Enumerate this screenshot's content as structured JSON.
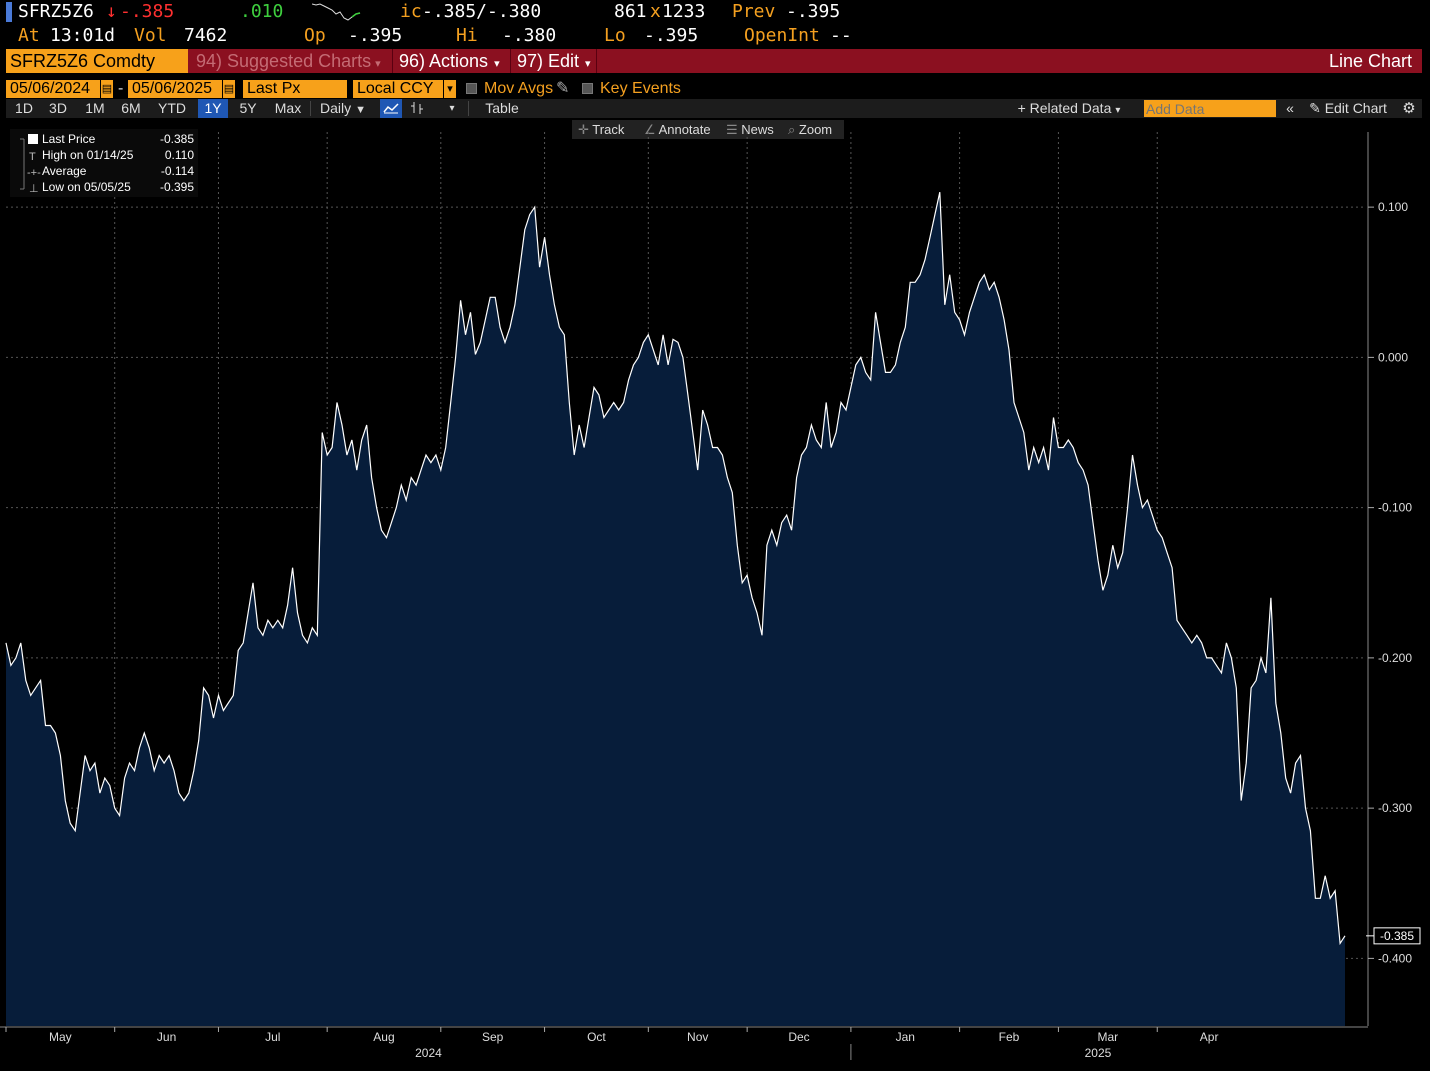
{
  "quote": {
    "ticker": "SFRZ5Z6",
    "arrow": "↓",
    "last": "-.385",
    "change": ".010",
    "ic_label": "ic",
    "bid_ask": "-.385/-.380",
    "size_bid": "861",
    "size_x": "x",
    "size_ask": "1233",
    "prev_label": "Prev",
    "prev_value": "-.395",
    "at_label": "At",
    "at_time": "13:01d",
    "vol_label": "Vol",
    "vol_value": "7462",
    "op_label": "Op",
    "op_value": "-.395",
    "hi_label": "Hi",
    "hi_value": "-.380",
    "lo_label": "Lo",
    "lo_value": "-.395",
    "openint_label": "OpenInt",
    "openint_value": "--"
  },
  "toolbar": {
    "security": "SFRZ5Z6 Comdty",
    "suggested": "94) Suggested Charts",
    "actions": "96) Actions",
    "edit": "97) Edit",
    "chart_type": "Line Chart"
  },
  "controls": {
    "start_date": "05/06/2024",
    "dash": "-",
    "end_date": "05/06/2025",
    "field": "Last Px",
    "currency": "Local CCY",
    "mov_avgs": "Mov Avgs",
    "key_events": "Key Events"
  },
  "ranges": [
    "1D",
    "3D",
    "1M",
    "6M",
    "YTD",
    "1Y",
    "5Y",
    "Max"
  ],
  "selected_range": "1Y",
  "period": "Daily",
  "table_label": "Table",
  "related_data": "+ Related Data",
  "add_data_placeholder": "Add Data",
  "edit_chart": "Edit Chart",
  "tools": [
    "Track",
    "Annotate",
    "News",
    "Zoom"
  ],
  "legend": {
    "rows": [
      {
        "label": "Last Price",
        "value": "-0.385"
      },
      {
        "label": "High on 01/14/25",
        "value": "0.110"
      },
      {
        "label": "Average",
        "value": "-0.114"
      },
      {
        "label": "Low on 05/05/25",
        "value": "-0.395"
      }
    ]
  },
  "colors": {
    "accent_orange": "#f7a11a",
    "bar_red": "#8b1020",
    "line": "#ffffff",
    "fill": "#071d3a",
    "selected_blue": "#1f57b4"
  },
  "chart_data": {
    "type": "area",
    "series": [
      {
        "name": "Last Price",
        "x_start": "2024-05-06",
        "x_end": "2025-05-06",
        "values": [
          -0.19,
          -0.205,
          -0.2,
          -0.19,
          -0.215,
          -0.225,
          -0.22,
          -0.215,
          -0.245,
          -0.245,
          -0.25,
          -0.265,
          -0.295,
          -0.31,
          -0.315,
          -0.29,
          -0.265,
          -0.275,
          -0.27,
          -0.29,
          -0.28,
          -0.285,
          -0.3,
          -0.305,
          -0.28,
          -0.27,
          -0.275,
          -0.26,
          -0.25,
          -0.26,
          -0.275,
          -0.265,
          -0.27,
          -0.265,
          -0.275,
          -0.29,
          -0.295,
          -0.29,
          -0.275,
          -0.255,
          -0.22,
          -0.225,
          -0.24,
          -0.225,
          -0.235,
          -0.23,
          -0.225,
          -0.195,
          -0.19,
          -0.17,
          -0.15,
          -0.18,
          -0.185,
          -0.175,
          -0.18,
          -0.175,
          -0.18,
          -0.165,
          -0.14,
          -0.17,
          -0.185,
          -0.19,
          -0.18,
          -0.185,
          -0.05,
          -0.065,
          -0.06,
          -0.03,
          -0.045,
          -0.065,
          -0.055,
          -0.075,
          -0.055,
          -0.045,
          -0.08,
          -0.1,
          -0.115,
          -0.12,
          -0.11,
          -0.1,
          -0.085,
          -0.095,
          -0.08,
          -0.085,
          -0.075,
          -0.065,
          -0.07,
          -0.065,
          -0.075,
          -0.06,
          -0.03,
          0.0,
          0.038,
          0.015,
          0.03,
          0.002,
          0.01,
          0.025,
          0.04,
          0.04,
          0.02,
          0.01,
          0.02,
          0.035,
          0.06,
          0.085,
          0.095,
          0.1,
          0.06,
          0.08,
          0.055,
          0.035,
          0.02,
          0.015,
          -0.03,
          -0.065,
          -0.045,
          -0.06,
          -0.04,
          -0.02,
          -0.025,
          -0.04,
          -0.035,
          -0.03,
          -0.035,
          -0.03,
          -0.015,
          -0.005,
          0.0,
          0.01,
          0.015,
          0.005,
          -0.005,
          0.015,
          -0.005,
          0.012,
          0.01,
          0.0,
          -0.025,
          -0.05,
          -0.075,
          -0.035,
          -0.045,
          -0.06,
          -0.06,
          -0.065,
          -0.08,
          -0.09,
          -0.125,
          -0.15,
          -0.145,
          -0.16,
          -0.17,
          -0.185,
          -0.125,
          -0.115,
          -0.125,
          -0.11,
          -0.105,
          -0.115,
          -0.08,
          -0.065,
          -0.06,
          -0.045,
          -0.055,
          -0.06,
          -0.03,
          -0.06,
          -0.05,
          -0.03,
          -0.035,
          -0.02,
          -0.005,
          0.0,
          -0.01,
          -0.015,
          0.03,
          0.01,
          -0.01,
          -0.01,
          -0.005,
          0.01,
          0.02,
          0.05,
          0.05,
          0.055,
          0.065,
          0.08,
          0.095,
          0.11,
          0.035,
          0.055,
          0.03,
          0.025,
          0.015,
          0.03,
          0.04,
          0.05,
          0.055,
          0.045,
          0.05,
          0.04,
          0.025,
          0.005,
          -0.03,
          -0.04,
          -0.05,
          -0.075,
          -0.06,
          -0.07,
          -0.06,
          -0.075,
          -0.04,
          -0.06,
          -0.06,
          -0.055,
          -0.06,
          -0.07,
          -0.075,
          -0.085,
          -0.11,
          -0.135,
          -0.155,
          -0.145,
          -0.125,
          -0.14,
          -0.13,
          -0.1,
          -0.065,
          -0.085,
          -0.1,
          -0.095,
          -0.105,
          -0.115,
          -0.12,
          -0.13,
          -0.14,
          -0.175,
          -0.18,
          -0.185,
          -0.19,
          -0.185,
          -0.19,
          -0.2,
          -0.2,
          -0.205,
          -0.21,
          -0.19,
          -0.2,
          -0.22,
          -0.295,
          -0.27,
          -0.22,
          -0.215,
          -0.2,
          -0.21,
          -0.16,
          -0.23,
          -0.25,
          -0.28,
          -0.29,
          -0.27,
          -0.265,
          -0.3,
          -0.315,
          -0.36,
          -0.36,
          -0.345,
          -0.36,
          -0.355,
          -0.39,
          -0.385
        ]
      }
    ],
    "xaxis_months": [
      "May",
      "Jun",
      "Jul",
      "Aug",
      "Sep",
      "Oct",
      "Nov",
      "Dec",
      "Jan",
      "Feb",
      "Mar",
      "Apr"
    ],
    "xaxis_years": [
      "2024",
      "2025"
    ],
    "ylim": [
      -0.445,
      0.15
    ],
    "yticks": [
      0.1,
      0.0,
      -0.1,
      -0.2,
      -0.3,
      -0.4
    ],
    "ytick_labels": [
      "0.100",
      "0.000",
      "-0.100",
      "-0.200",
      "-0.300",
      "-0.400"
    ],
    "last_label": "-0.385",
    "grid": true,
    "legend_position": "top-left"
  }
}
